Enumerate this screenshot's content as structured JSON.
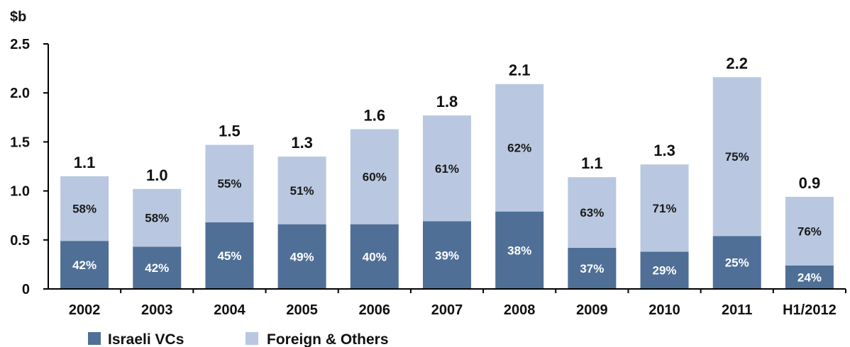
{
  "chart_data": {
    "type": "bar",
    "stacked": true,
    "unit_label": "$b",
    "categories": [
      "2002",
      "2003",
      "2004",
      "2005",
      "2006",
      "2007",
      "2008",
      "2009",
      "2010",
      "2011",
      "H1/2012"
    ],
    "totals": [
      "1.1",
      "1.0",
      "1.5",
      "1.3",
      "1.6",
      "1.8",
      "2.1",
      "1.1",
      "1.3",
      "2.2",
      "0.9"
    ],
    "series": [
      {
        "name": "Israeli VCs",
        "color": "#4f6f96",
        "values": [
          0.49,
          0.43,
          0.68,
          0.66,
          0.66,
          0.69,
          0.79,
          0.42,
          0.38,
          0.54,
          0.24
        ],
        "labels": [
          "42%",
          "42%",
          "45%",
          "49%",
          "40%",
          "39%",
          "38%",
          "37%",
          "29%",
          "25%",
          "24%"
        ]
      },
      {
        "name": "Foreign & Others",
        "color": "#b9c8e0",
        "values": [
          0.66,
          0.59,
          0.79,
          0.69,
          0.97,
          1.08,
          1.3,
          0.72,
          0.89,
          1.62,
          0.7
        ],
        "labels": [
          "58%",
          "58%",
          "55%",
          "51%",
          "60%",
          "61%",
          "62%",
          "63%",
          "71%",
          "75%",
          "76%"
        ]
      }
    ],
    "y_ticks": [
      "0",
      "0.5",
      "1.0",
      "1.5",
      "2.0",
      "2.5"
    ],
    "ylim": [
      0,
      2.5
    ],
    "grid": false,
    "legend_position": "bottom-left"
  }
}
